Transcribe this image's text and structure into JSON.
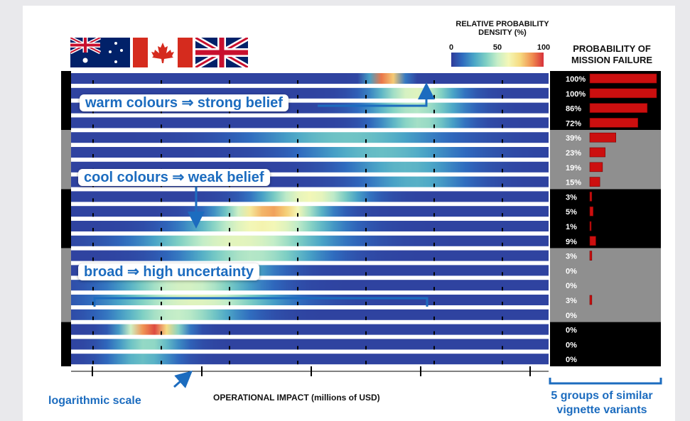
{
  "colorbar": {
    "title_line1": "RELATIVE PROBABILITY",
    "title_line2": "DENSITY (%)",
    "ticks": [
      "0",
      "50",
      "100"
    ],
    "colors": [
      "#2f3b9a",
      "#2f6bbf",
      "#4aa6c7",
      "#7fd0c4",
      "#c6eec8",
      "#f4f7b6",
      "#f6d97e",
      "#ef8b4f",
      "#d7303a"
    ]
  },
  "failure_header": {
    "line1": "PROBABILITY OF",
    "line2": "MISSION FAILURE"
  },
  "annotations": {
    "warm": "warm colours ⇒ strong belief",
    "cool": "cool colours ⇒ weak belief",
    "broad": "broad ⇒ high uncertainty",
    "log": "logarithmic scale",
    "groups_line1": "5 groups of similar",
    "groups_line2": "vignette variants"
  },
  "flags": [
    "australia-flag",
    "canada-flag",
    "uk-flag"
  ],
  "chart_data": {
    "type": "heatmap",
    "xlabel": "OPERATIONAL IMPACT  (millions of USD)",
    "x_scale": "log",
    "legend_position": "top-right",
    "groups": [
      {
        "shade": "black",
        "rows": [
          0,
          1,
          2,
          3
        ]
      },
      {
        "shade": "gray",
        "rows": [
          4,
          5,
          6,
          7
        ]
      },
      {
        "shade": "black",
        "rows": [
          8,
          9,
          10,
          11
        ]
      },
      {
        "shade": "gray",
        "rows": [
          12,
          13,
          14,
          15,
          16
        ]
      },
      {
        "shade": "black",
        "rows": [
          17,
          18,
          19
        ]
      }
    ],
    "rows": [
      {
        "failure_label": "100%",
        "failure": 100,
        "density_peak": 0.66,
        "density_width": 0.02,
        "peak_density": 100
      },
      {
        "failure_label": "100%",
        "failure": 100,
        "density_peak": 0.72,
        "density_width": 0.06,
        "peak_density": 55
      },
      {
        "failure_label": "86%",
        "failure": 86,
        "density_peak": 0.72,
        "density_width": 0.07,
        "peak_density": 45
      },
      {
        "failure_label": "72%",
        "failure": 72,
        "density_peak": 0.73,
        "density_width": 0.06,
        "peak_density": 42
      },
      {
        "failure_label": "39%",
        "failure": 39,
        "density_peak": 0.58,
        "density_width": 0.14,
        "peak_density": 32
      },
      {
        "failure_label": "23%",
        "failure": 23,
        "density_peak": 0.65,
        "density_width": 0.12,
        "peak_density": 30
      },
      {
        "failure_label": "19%",
        "failure": 19,
        "density_peak": 0.7,
        "density_width": 0.09,
        "peak_density": 28
      },
      {
        "failure_label": "15%",
        "failure": 15,
        "density_peak": 0.72,
        "density_width": 0.08,
        "peak_density": 26
      },
      {
        "failure_label": "3%",
        "failure": 3,
        "density_peak": 0.5,
        "density_width": 0.07,
        "peak_density": 60
      },
      {
        "failure_label": "5%",
        "failure": 5,
        "density_peak": 0.42,
        "density_width": 0.07,
        "peak_density": 82
      },
      {
        "failure_label": "1%",
        "failure": 1,
        "density_peak": 0.4,
        "density_width": 0.1,
        "peak_density": 62
      },
      {
        "failure_label": "9%",
        "failure": 9,
        "density_peak": 0.35,
        "density_width": 0.13,
        "peak_density": 56
      },
      {
        "failure_label": "3%",
        "failure": 3,
        "density_peak": 0.38,
        "density_width": 0.1,
        "peak_density": 45
      },
      {
        "failure_label": "0%",
        "failure": 0,
        "density_peak": 0.28,
        "density_width": 0.09,
        "peak_density": 50
      },
      {
        "failure_label": "0%",
        "failure": 0,
        "density_peak": 0.24,
        "density_width": 0.1,
        "peak_density": 52
      },
      {
        "failure_label": "3%",
        "failure": 3,
        "density_peak": 0.26,
        "density_width": 0.12,
        "peak_density": 55
      },
      {
        "failure_label": "0%",
        "failure": 0,
        "density_peak": 0.22,
        "density_width": 0.09,
        "peak_density": 48
      },
      {
        "failure_label": "0%",
        "failure": 0,
        "density_peak": 0.17,
        "density_width": 0.04,
        "peak_density": 95
      },
      {
        "failure_label": "0%",
        "failure": 0,
        "density_peak": 0.16,
        "density_width": 0.05,
        "peak_density": 40
      },
      {
        "failure_label": "0%",
        "failure": 0,
        "density_peak": 0.15,
        "density_width": 0.05,
        "peak_density": 30
      }
    ]
  }
}
